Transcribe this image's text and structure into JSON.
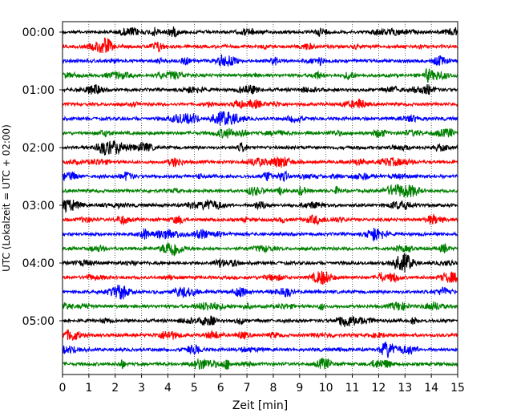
{
  "chart_data": {
    "type": "line",
    "title": "",
    "xlabel": "Zeit  [min]",
    "ylabel": "UTC (Lokalzeit = UTC + 02:00)",
    "xlim": [
      0,
      15
    ],
    "x_ticks": [
      "0",
      "1",
      "2",
      "3",
      "4",
      "5",
      "6",
      "7",
      "8",
      "9",
      "10",
      "11",
      "12",
      "13",
      "14",
      "15"
    ],
    "y_ticks": [
      "00:00",
      "01:00",
      "02:00",
      "03:00",
      "04:00",
      "05:00"
    ],
    "grid": "vertical dotted at each minute",
    "row_interval_min": 15,
    "row_colors": [
      "#000000",
      "#ff0000",
      "#0000ff",
      "#008000"
    ],
    "rows": [
      {
        "time": "00:00",
        "color": "#000000"
      },
      {
        "time": "00:15",
        "color": "#ff0000"
      },
      {
        "time": "00:30",
        "color": "#0000ff"
      },
      {
        "time": "00:45",
        "color": "#008000"
      },
      {
        "time": "01:00",
        "color": "#000000"
      },
      {
        "time": "01:15",
        "color": "#ff0000"
      },
      {
        "time": "01:30",
        "color": "#0000ff"
      },
      {
        "time": "01:45",
        "color": "#008000"
      },
      {
        "time": "02:00",
        "color": "#000000"
      },
      {
        "time": "02:15",
        "color": "#ff0000"
      },
      {
        "time": "02:30",
        "color": "#0000ff"
      },
      {
        "time": "02:45",
        "color": "#008000"
      },
      {
        "time": "03:00",
        "color": "#000000"
      },
      {
        "time": "03:15",
        "color": "#ff0000"
      },
      {
        "time": "03:30",
        "color": "#0000ff"
      },
      {
        "time": "03:45",
        "color": "#008000"
      },
      {
        "time": "04:00",
        "color": "#000000"
      },
      {
        "time": "04:15",
        "color": "#ff0000"
      },
      {
        "time": "04:30",
        "color": "#0000ff"
      },
      {
        "time": "04:45",
        "color": "#008000"
      },
      {
        "time": "05:00",
        "color": "#000000"
      },
      {
        "time": "05:15",
        "color": "#ff0000"
      },
      {
        "time": "05:30",
        "color": "#0000ff"
      },
      {
        "time": "05:45",
        "color": "#008000"
      }
    ]
  }
}
